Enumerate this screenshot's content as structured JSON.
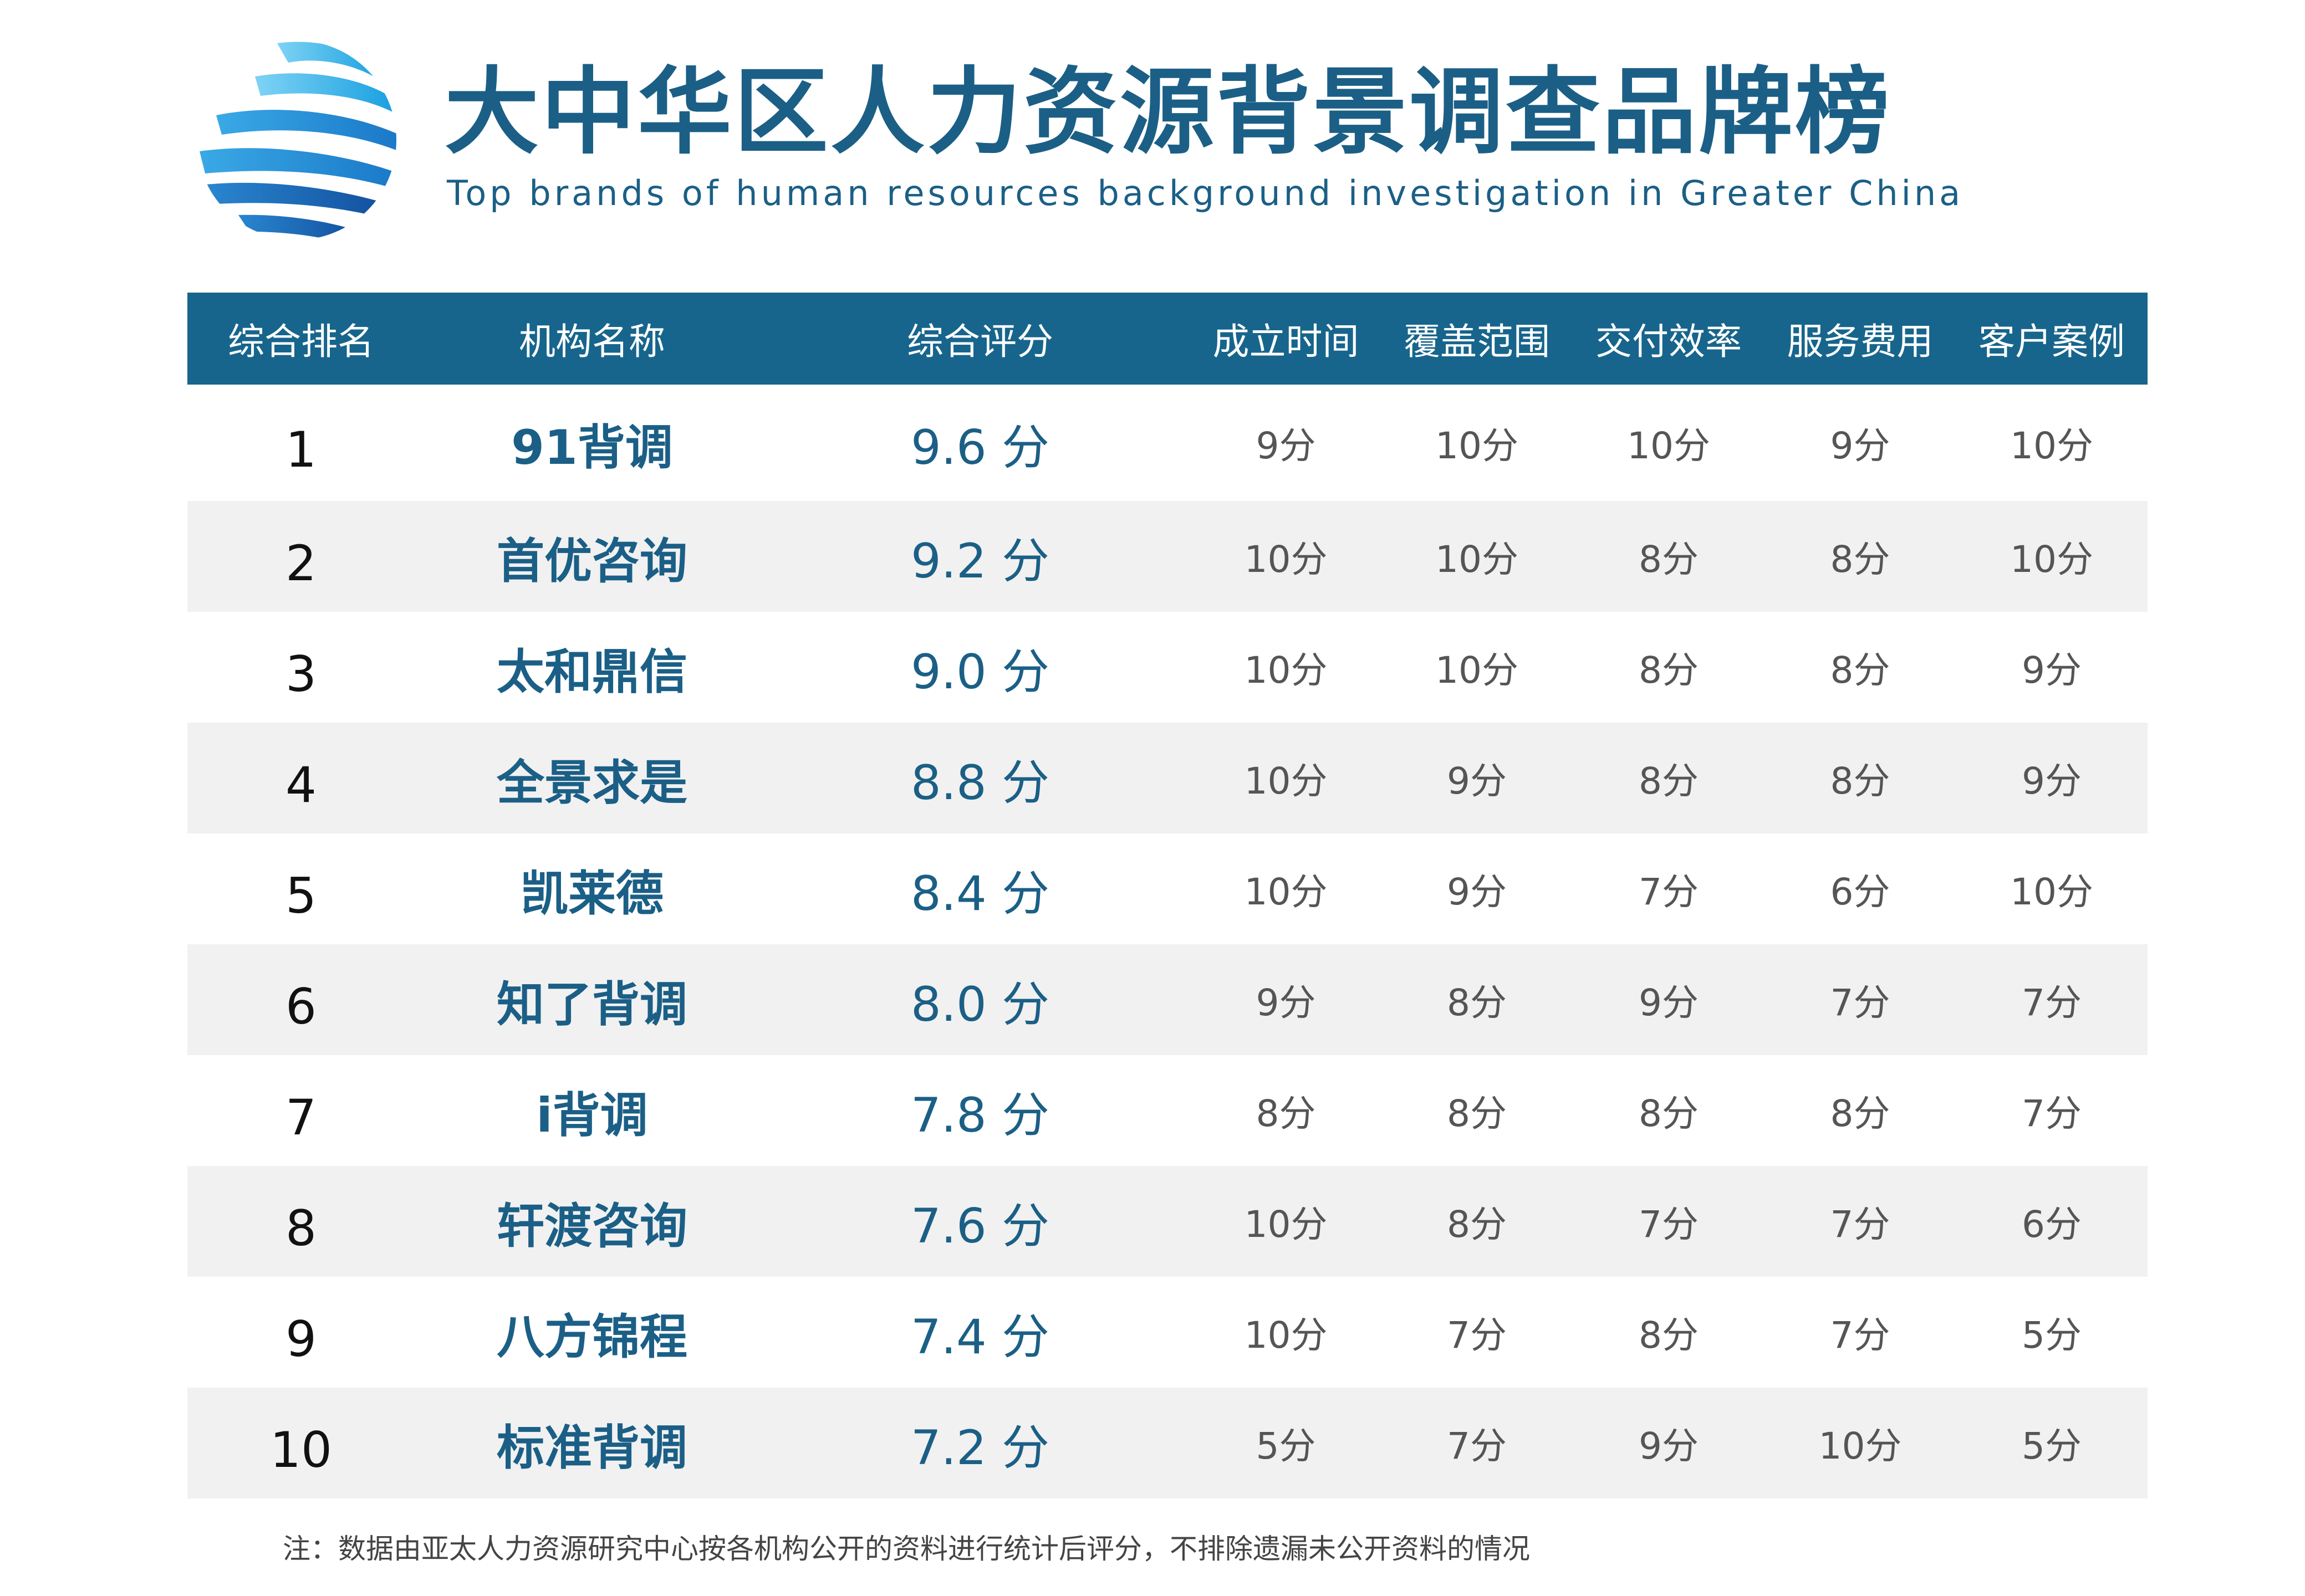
{
  "header": {
    "title_zh": "大中华区人力资源背景调查品牌榜",
    "title_en": "Top brands of human resources background investigation in Greater China"
  },
  "colors": {
    "header_bg": "#17658c",
    "accent_text": "#1b5f86",
    "zebra_row": "#f1f1f1"
  },
  "table": {
    "columns": [
      "综合排名",
      "机构名称",
      "综合评分",
      "成立时间",
      "覆盖范围",
      "交付效率",
      "服务费用",
      "客户案例"
    ],
    "rows": [
      {
        "rank": "1",
        "org": "91背调",
        "score": "9.6 分",
        "founded": "9分",
        "coverage": "10分",
        "delivery": "10分",
        "fee": "9分",
        "cases": "10分"
      },
      {
        "rank": "2",
        "org": "首优咨询",
        "score": "9.2 分",
        "founded": "10分",
        "coverage": "10分",
        "delivery": "8分",
        "fee": "8分",
        "cases": "10分"
      },
      {
        "rank": "3",
        "org": "太和鼎信",
        "score": "9.0 分",
        "founded": "10分",
        "coverage": "10分",
        "delivery": "8分",
        "fee": "8分",
        "cases": "9分"
      },
      {
        "rank": "4",
        "org": "全景求是",
        "score": "8.8 分",
        "founded": "10分",
        "coverage": "9分",
        "delivery": "8分",
        "fee": "8分",
        "cases": "9分"
      },
      {
        "rank": "5",
        "org": "凯莱德",
        "score": "8.4 分",
        "founded": "10分",
        "coverage": "9分",
        "delivery": "7分",
        "fee": "6分",
        "cases": "10分"
      },
      {
        "rank": "6",
        "org": "知了背调",
        "score": "8.0 分",
        "founded": "9分",
        "coverage": "8分",
        "delivery": "9分",
        "fee": "7分",
        "cases": "7分"
      },
      {
        "rank": "7",
        "org": "i背调",
        "score": "7.8 分",
        "founded": "8分",
        "coverage": "8分",
        "delivery": "8分",
        "fee": "8分",
        "cases": "7分"
      },
      {
        "rank": "8",
        "org": "轩渡咨询",
        "score": "7.6 分",
        "founded": "10分",
        "coverage": "8分",
        "delivery": "7分",
        "fee": "7分",
        "cases": "6分"
      },
      {
        "rank": "9",
        "org": "八方锦程",
        "score": "7.4 分",
        "founded": "10分",
        "coverage": "7分",
        "delivery": "8分",
        "fee": "7分",
        "cases": "5分"
      },
      {
        "rank": "10",
        "org": "标准背调",
        "score": "7.2 分",
        "founded": "5分",
        "coverage": "7分",
        "delivery": "9分",
        "fee": "10分",
        "cases": "5分"
      }
    ]
  },
  "footnote": "注：数据由亚太人力资源研究中心按各机构公开的资料进行统计后评分，不排除遗漏未公开资料的情况"
}
